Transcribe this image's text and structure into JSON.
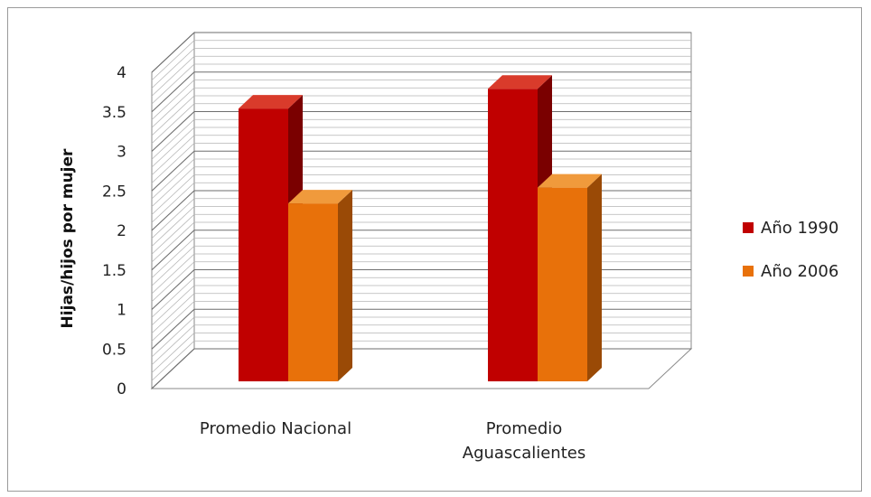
{
  "chart_data": {
    "type": "bar",
    "title": "",
    "xlabel": "",
    "ylabel": "Hijas/hijos por mujer",
    "categories": [
      "Promedio Nacional",
      "Promedio Aguascalientes"
    ],
    "category_lines": [
      [
        "Promedio Nacional"
      ],
      [
        "Promedio",
        "Aguascalientes"
      ]
    ],
    "series": [
      {
        "name": "Año 1990",
        "values": [
          3.45,
          3.7
        ],
        "color": "#c00000",
        "side_color": "#7a0000",
        "top_color": "#d93b2b"
      },
      {
        "name": "Año 2006",
        "values": [
          2.25,
          2.45
        ],
        "color": "#e8710a",
        "side_color": "#9a4a06",
        "top_color": "#f09a3c"
      }
    ],
    "ylim": [
      0,
      4
    ],
    "yticks": [
      0,
      0.5,
      1,
      1.5,
      2,
      2.5,
      3,
      3.5,
      4
    ],
    "ytick_labels": [
      "0",
      "0.5",
      "1",
      "1.5",
      "2",
      "2.5",
      "3",
      "3.5",
      "4"
    ],
    "grid": true,
    "legend": "right",
    "three_d": true
  }
}
